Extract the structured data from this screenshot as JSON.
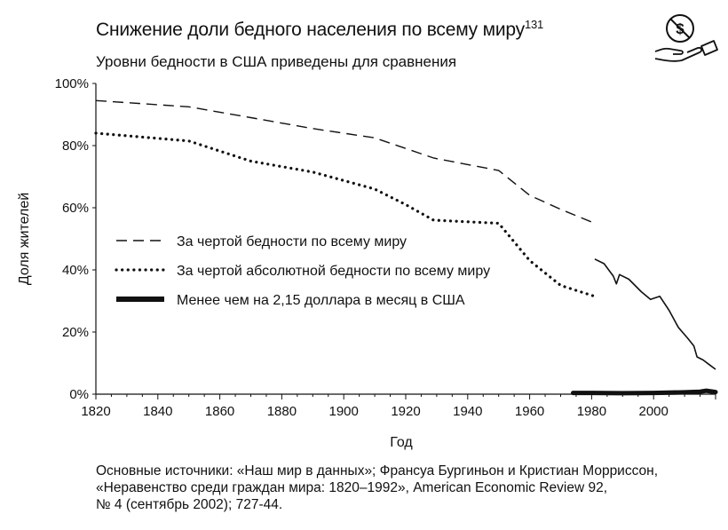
{
  "title": "Снижение доли бедного населения по всему миру",
  "title_superscript": "131",
  "subtitle": "Уровни бедности в США приведены для сравнения",
  "source_lines": [
    "Основные источники: «Наш мир в данных»; Франсуа Бургиньон и Кристиан Морриссон,",
    "«Неравенство среди граждан мира: 1820–1992», American Economic Review 92,",
    "№ 4 (сентябрь 2002); 727-44."
  ],
  "icon": "hand-with-crossed-dollar-icon",
  "chart_data": {
    "type": "line",
    "xlabel": "Год",
    "ylabel": "Доля жителей",
    "xlim": [
      1820,
      2020
    ],
    "ylim": [
      0,
      100
    ],
    "x_ticks": [
      1820,
      1840,
      1860,
      1880,
      1900,
      1920,
      1940,
      1960,
      1980,
      2000
    ],
    "y_ticks": [
      0,
      20,
      40,
      60,
      80,
      100
    ],
    "y_tick_labels": [
      "0%",
      "20%",
      "40%",
      "60%",
      "80%",
      "100%"
    ],
    "grid": false,
    "legend_position": "center-left",
    "series": [
      {
        "name": "За чертой бедности по всему миру",
        "style": "dashed",
        "points": [
          [
            1820,
            94.5
          ],
          [
            1850,
            92.5
          ],
          [
            1870,
            89
          ],
          [
            1890,
            85.5
          ],
          [
            1910,
            82.5
          ],
          [
            1929,
            76
          ],
          [
            1950,
            72
          ],
          [
            1960,
            64
          ],
          [
            1970,
            59.5
          ],
          [
            1981,
            55
          ]
        ]
      },
      {
        "name": "За чертой абсолютной бедности по всему миру",
        "style": "dotted",
        "points": [
          [
            1820,
            84
          ],
          [
            1850,
            81.5
          ],
          [
            1870,
            75
          ],
          [
            1890,
            71.5
          ],
          [
            1910,
            66
          ],
          [
            1920,
            61
          ],
          [
            1929,
            56
          ],
          [
            1950,
            55
          ],
          [
            1960,
            43
          ],
          [
            1970,
            35
          ],
          [
            1981,
            31.5
          ]
        ]
      },
      {
        "name": "",
        "style": "thin-solid",
        "points": [
          [
            1981,
            43.5
          ],
          [
            1984,
            42
          ],
          [
            1987,
            38
          ],
          [
            1988,
            35.5
          ],
          [
            1989,
            38.5
          ],
          [
            1992,
            37
          ],
          [
            1996,
            33
          ],
          [
            1999,
            30.5
          ],
          [
            2002,
            31.5
          ],
          [
            2005,
            27
          ],
          [
            2008,
            21.5
          ],
          [
            2011,
            18
          ],
          [
            2013,
            15.5
          ],
          [
            2014,
            12
          ],
          [
            2016,
            11
          ],
          [
            2018,
            9.5
          ],
          [
            2020,
            8
          ]
        ]
      },
      {
        "name": "Менее чем на 2,15 доллара в месяц в США",
        "style": "thick-solid",
        "points": [
          [
            1974,
            0.4
          ],
          [
            1980,
            0.4
          ],
          [
            1990,
            0.3
          ],
          [
            2000,
            0.4
          ],
          [
            2010,
            0.6
          ],
          [
            2015,
            0.8
          ],
          [
            2017,
            1.1
          ],
          [
            2020,
            0.7
          ]
        ]
      }
    ]
  }
}
